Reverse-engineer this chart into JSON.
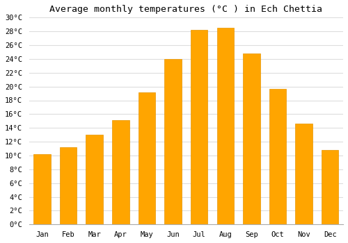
{
  "title": "Average monthly temperatures (°C ) in Ech Chettia",
  "months": [
    "Jan",
    "Feb",
    "Mar",
    "Apr",
    "May",
    "Jun",
    "Jul",
    "Aug",
    "Sep",
    "Oct",
    "Nov",
    "Dec"
  ],
  "values": [
    10.2,
    11.2,
    13.0,
    15.1,
    19.2,
    24.0,
    28.2,
    28.5,
    24.8,
    19.7,
    14.6,
    10.8
  ],
  "bar_color": "#FFA500",
  "bar_edge_color": "#E69500",
  "background_color": "#FFFFFF",
  "grid_color": "#DDDDDD",
  "ylim": [
    0,
    30
  ],
  "title_fontsize": 9.5,
  "tick_fontsize": 7.5,
  "font_family": "monospace"
}
